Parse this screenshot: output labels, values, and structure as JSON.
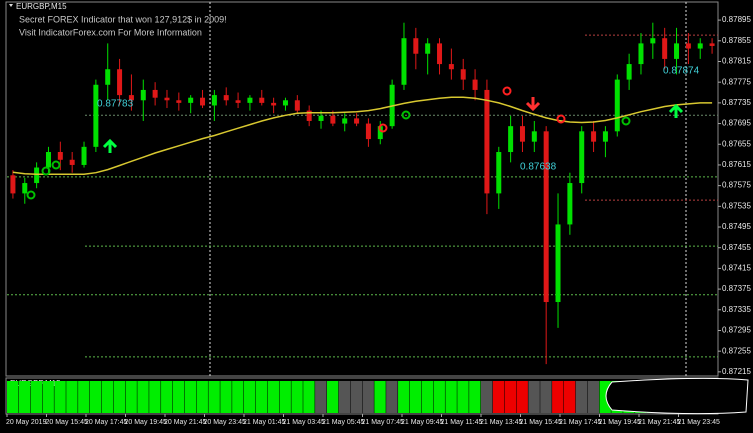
{
  "chart_data": {
    "type": "candlestick",
    "symbol": "EURGBP,M15",
    "header_lines": [
      "Secret FOREX Indicator that won 127,912$ in 2009!",
      "Visit IndicatorForex.com For More Information"
    ],
    "subwindow_label": "EURGBP,M15",
    "ylim": [
      0.87207,
      0.8793
    ],
    "yticks": [
      0.87895,
      0.87855,
      0.87815,
      0.87775,
      0.87735,
      0.87695,
      0.87655,
      0.87615,
      0.87575,
      0.87535,
      0.87495,
      0.87455,
      0.87415,
      0.87375,
      0.87335,
      0.87295,
      0.87255,
      0.87215
    ],
    "x_labels": [
      "20 May 2019",
      "20 May 15:45",
      "20 May 17:45",
      "20 May 19:45",
      "20 May 21:45",
      "20 May 23:45",
      "21 May 01:45",
      "21 May 03:45",
      "21 May 05:45",
      "21 May 07:45",
      "21 May 09:45",
      "21 May 11:45",
      "21 May 13:45",
      "21 May 15:45",
      "21 May 17:45",
      "21 May 19:45",
      "21 May 21:45",
      "21 May 23:45"
    ],
    "up_color": "#00e000",
    "down_color": "#e01818",
    "ma_color": "#d8c830",
    "candles": [
      [
        0.87595,
        0.87605,
        0.8755,
        0.8756
      ],
      [
        0.8756,
        0.8759,
        0.8754,
        0.8758
      ],
      [
        0.8758,
        0.8762,
        0.8757,
        0.8761
      ],
      [
        0.8761,
        0.8765,
        0.876,
        0.8764
      ],
      [
        0.8764,
        0.8766,
        0.87605,
        0.87625
      ],
      [
        0.87625,
        0.8764,
        0.876,
        0.87615
      ],
      [
        0.87615,
        0.8766,
        0.8761,
        0.8765
      ],
      [
        0.8765,
        0.8778,
        0.8764,
        0.8777
      ],
      [
        0.8777,
        0.8785,
        0.8774,
        0.878
      ],
      [
        0.878,
        0.8782,
        0.8773,
        0.8775
      ],
      [
        0.8775,
        0.8779,
        0.8772,
        0.8774
      ],
      [
        0.8774,
        0.8778,
        0.877,
        0.8776
      ],
      [
        0.8776,
        0.87775,
        0.8773,
        0.87745
      ],
      [
        0.87745,
        0.8776,
        0.87725,
        0.8774
      ],
      [
        0.8774,
        0.87755,
        0.8772,
        0.87735
      ],
      [
        0.87735,
        0.8775,
        0.87715,
        0.87745
      ],
      [
        0.87745,
        0.8776,
        0.87725,
        0.8773
      ],
      [
        0.8773,
        0.8776,
        0.877,
        0.8775
      ],
      [
        0.8775,
        0.87765,
        0.8773,
        0.8774
      ],
      [
        0.8774,
        0.87755,
        0.87725,
        0.87735
      ],
      [
        0.87735,
        0.8775,
        0.8772,
        0.87745
      ],
      [
        0.87745,
        0.8776,
        0.8773,
        0.87735
      ],
      [
        0.87735,
        0.87745,
        0.87715,
        0.8773
      ],
      [
        0.8773,
        0.87745,
        0.8772,
        0.8774
      ],
      [
        0.8774,
        0.8775,
        0.87715,
        0.8772
      ],
      [
        0.8772,
        0.8773,
        0.8769,
        0.877
      ],
      [
        0.877,
        0.8772,
        0.87685,
        0.8771
      ],
      [
        0.8771,
        0.8772,
        0.8769,
        0.87695
      ],
      [
        0.87695,
        0.87715,
        0.8768,
        0.87705
      ],
      [
        0.87705,
        0.87715,
        0.8769,
        0.87695
      ],
      [
        0.87695,
        0.87705,
        0.8765,
        0.87665
      ],
      [
        0.87665,
        0.877,
        0.87655,
        0.8769
      ],
      [
        0.8769,
        0.8778,
        0.87685,
        0.8777
      ],
      [
        0.8777,
        0.8789,
        0.8776,
        0.8786
      ],
      [
        0.8786,
        0.8788,
        0.878,
        0.8783
      ],
      [
        0.8783,
        0.8786,
        0.8779,
        0.8785
      ],
      [
        0.8785,
        0.8786,
        0.8779,
        0.8781
      ],
      [
        0.8781,
        0.8784,
        0.8778,
        0.878
      ],
      [
        0.878,
        0.8782,
        0.8776,
        0.8778
      ],
      [
        0.8778,
        0.878,
        0.8774,
        0.8776
      ],
      [
        0.8776,
        0.8778,
        0.8752,
        0.8756
      ],
      [
        0.8756,
        0.8765,
        0.8753,
        0.8764
      ],
      [
        0.8764,
        0.8771,
        0.8762,
        0.8769
      ],
      [
        0.8769,
        0.8771,
        0.8764,
        0.8766
      ],
      [
        0.8766,
        0.877,
        0.8764,
        0.8768
      ],
      [
        0.8768,
        0.8769,
        0.8723,
        0.8735
      ],
      [
        0.8735,
        0.8756,
        0.873,
        0.875
      ],
      [
        0.875,
        0.876,
        0.8748,
        0.8758
      ],
      [
        0.8758,
        0.8769,
        0.8756,
        0.8768
      ],
      [
        0.8768,
        0.877,
        0.8764,
        0.8766
      ],
      [
        0.8766,
        0.8769,
        0.8763,
        0.8768
      ],
      [
        0.8768,
        0.8779,
        0.8767,
        0.8778
      ],
      [
        0.8778,
        0.8783,
        0.8776,
        0.8781
      ],
      [
        0.8781,
        0.8787,
        0.8779,
        0.8785
      ],
      [
        0.8785,
        0.8789,
        0.8782,
        0.8786
      ],
      [
        0.8786,
        0.8788,
        0.878,
        0.8782
      ],
      [
        0.8782,
        0.8788,
        0.8779,
        0.8785
      ],
      [
        0.8785,
        0.8787,
        0.8781,
        0.8784
      ],
      [
        0.8784,
        0.8786,
        0.8782,
        0.8785
      ],
      [
        0.8785,
        0.8786,
        0.8783,
        0.87845
      ]
    ],
    "ma": [
      0.87601,
      0.87598,
      0.87597,
      0.87597,
      0.87597,
      0.87597,
      0.87597,
      0.876,
      0.87606,
      0.87614,
      0.87622,
      0.8763,
      0.87638,
      0.87645,
      0.87652,
      0.87659,
      0.87666,
      0.87672,
      0.87679,
      0.87686,
      0.87693,
      0.877,
      0.87706,
      0.87711,
      0.87715,
      0.87716,
      0.87716,
      0.87716,
      0.87717,
      0.87718,
      0.8772,
      0.87724,
      0.87729,
      0.87734,
      0.87738,
      0.87741,
      0.87744,
      0.87746,
      0.87746,
      0.87744,
      0.8774,
      0.87735,
      0.87728,
      0.8772,
      0.87713,
      0.87706,
      0.87701,
      0.87698,
      0.87697,
      0.87698,
      0.87701,
      0.87706,
      0.87712,
      0.87718,
      0.87723,
      0.87728,
      0.87731,
      0.87733,
      0.87735,
      0.87735
    ],
    "levels": [
      {
        "value": 0.87592,
        "color": "#5cb84a"
      },
      {
        "value": 0.87458,
        "color": "#5cb84a"
      },
      {
        "value": 0.87364,
        "color": "#5cb84a"
      },
      {
        "value": 0.87244,
        "color": "#5cb84a"
      },
      {
        "value": 0.87711,
        "color": "#6a8a6a"
      },
      {
        "value": 0.87866,
        "color": "#b84040"
      },
      {
        "value": 0.87547,
        "color": "#b84040"
      }
    ],
    "price_labels": [
      0.87783,
      0.87638,
      0.87874
    ],
    "histogram_colors": [
      "#00ee00",
      "#00ee00",
      "#00ee00",
      "#00ee00",
      "#00ee00",
      "#00ee00",
      "#00ee00",
      "#00ee00",
      "#00ee00",
      "#00ee00",
      "#00ee00",
      "#00ee00",
      "#00ee00",
      "#00ee00",
      "#00ee00",
      "#00ee00",
      "#00ee00",
      "#00ee00",
      "#00ee00",
      "#00ee00",
      "#00ee00",
      "#00ee00",
      "#00ee00",
      "#00ee00",
      "#00ee00",
      "#00ee00",
      "#555555",
      "#00ee00",
      "#555555",
      "#555555",
      "#555555",
      "#00ee00",
      "#555555",
      "#00ee00",
      "#00ee00",
      "#00ee00",
      "#00ee00",
      "#00ee00",
      "#00ee00",
      "#00ee00",
      "#555555",
      "#ee0000",
      "#ee0000",
      "#ee0000",
      "#555555",
      "#555555",
      "#ee0000",
      "#ee0000",
      "#555555",
      "#555555",
      "#00ee00",
      "#00ee00",
      "#00ee00",
      "#00ee00",
      "#00ee00",
      "#00ee00",
      "#00ee00",
      "#00ee00",
      "#00ee00",
      "#00ee00"
    ]
  }
}
